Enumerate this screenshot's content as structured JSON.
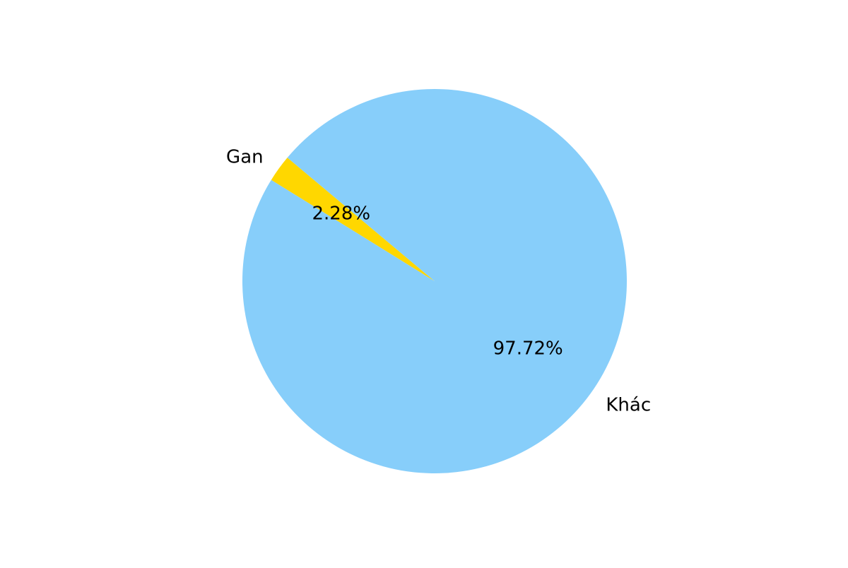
{
  "chart_data": {
    "type": "pie",
    "title": "",
    "slices": [
      {
        "label": "Gan",
        "value": 2.28,
        "percent_label": "2.28%",
        "color": "#FFD700"
      },
      {
        "label": "Khác",
        "value": 97.72,
        "percent_label": "97.72%",
        "color": "#87CEFA"
      }
    ],
    "start_angle_deg": 140,
    "direction": "counterclockwise",
    "legend": "none"
  }
}
